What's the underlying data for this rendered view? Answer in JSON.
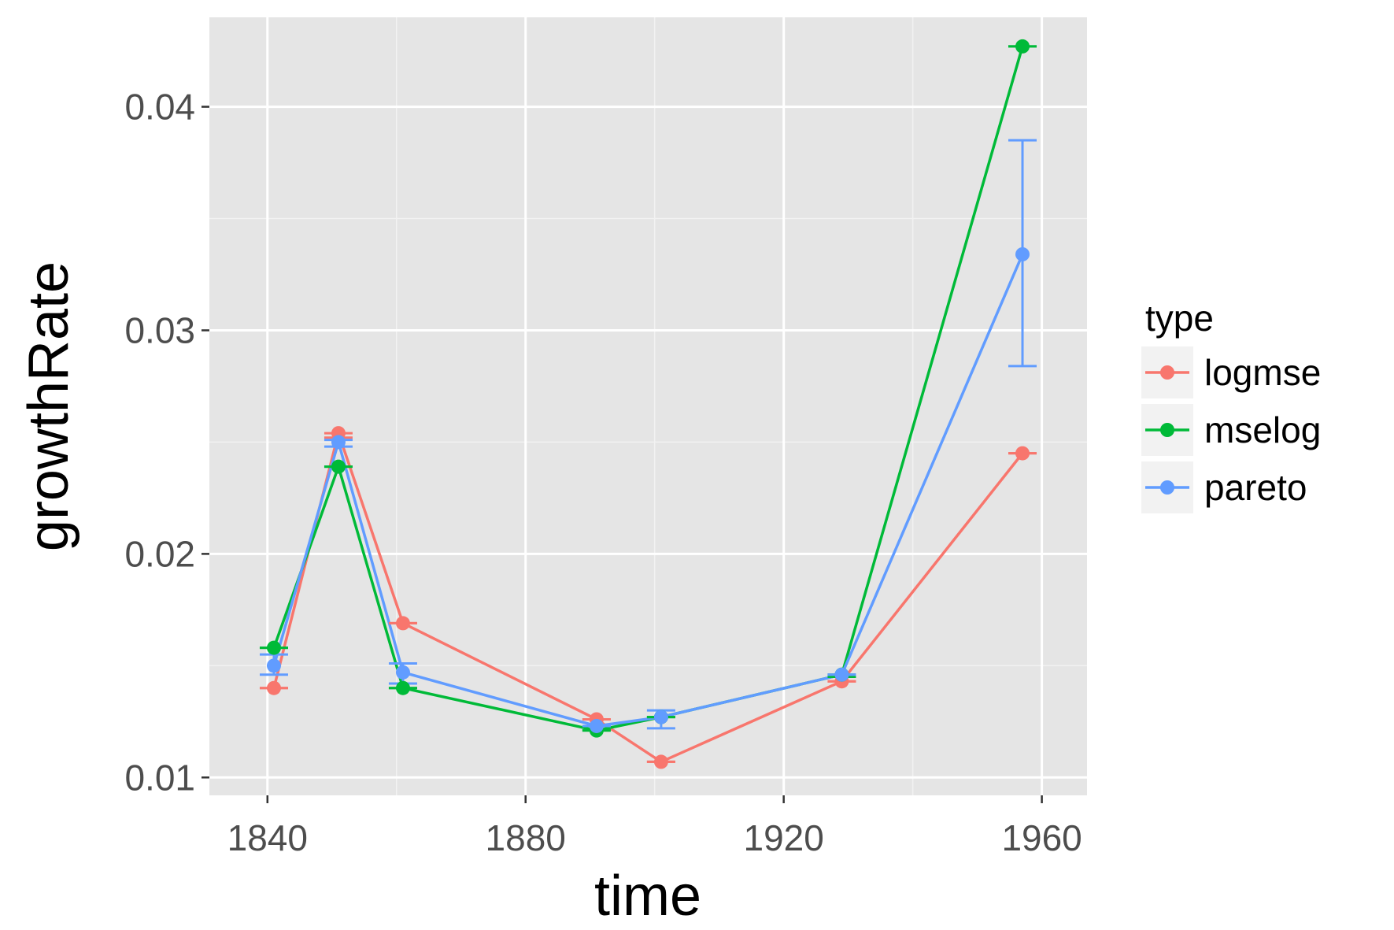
{
  "chart_data": {
    "type": "line",
    "xlabel": "time",
    "ylabel": "growthRate",
    "xlim": [
      1831,
      1967
    ],
    "ylim": [
      0.0092,
      0.044
    ],
    "x_ticks": [
      1840,
      1880,
      1920,
      1960
    ],
    "x_tick_labels": [
      "1840",
      "1880",
      "1920",
      "1960"
    ],
    "y_ticks": [
      0.01,
      0.02,
      0.03,
      0.04
    ],
    "y_tick_labels": [
      "0.01",
      "0.02",
      "0.03",
      "0.04"
    ],
    "grid": true,
    "legend": {
      "title": "type",
      "position": "right"
    },
    "series": [
      {
        "name": "logmse",
        "color": "#F8766D",
        "x": [
          1841,
          1851,
          1861,
          1891,
          1901,
          1929,
          1957
        ],
        "y": [
          0.014,
          0.0254,
          0.0169,
          0.0126,
          0.0107,
          0.0143,
          0.0245
        ],
        "err_low": [
          0.014,
          0.0252,
          0.0169,
          0.0126,
          0.0107,
          0.0143,
          0.0245
        ],
        "err_high": [
          0.014,
          0.0254,
          0.0169,
          0.0126,
          0.0107,
          0.0143,
          0.0245
        ]
      },
      {
        "name": "mselog",
        "color": "#00BA38",
        "x": [
          1841,
          1851,
          1861,
          1891,
          1901,
          1929,
          1957
        ],
        "y": [
          0.0158,
          0.0239,
          0.014,
          0.0121,
          0.0127,
          0.0146,
          0.0427
        ],
        "err_low": [
          0.0158,
          0.0239,
          0.014,
          0.0121,
          0.0127,
          0.0145,
          0.0427
        ],
        "err_high": [
          0.0158,
          0.0239,
          0.014,
          0.0121,
          0.0127,
          0.0146,
          0.0427
        ]
      },
      {
        "name": "pareto",
        "color": "#619CFF",
        "x": [
          1841,
          1851,
          1861,
          1891,
          1901,
          1929,
          1957
        ],
        "y": [
          0.015,
          0.025,
          0.0147,
          0.0123,
          0.0127,
          0.0146,
          0.0334
        ],
        "err_low": [
          0.0146,
          0.0248,
          0.0142,
          0.0123,
          0.0122,
          0.0146,
          0.0284
        ],
        "err_high": [
          0.0155,
          0.0251,
          0.0151,
          0.0123,
          0.013,
          0.0146,
          0.0385
        ]
      }
    ]
  }
}
